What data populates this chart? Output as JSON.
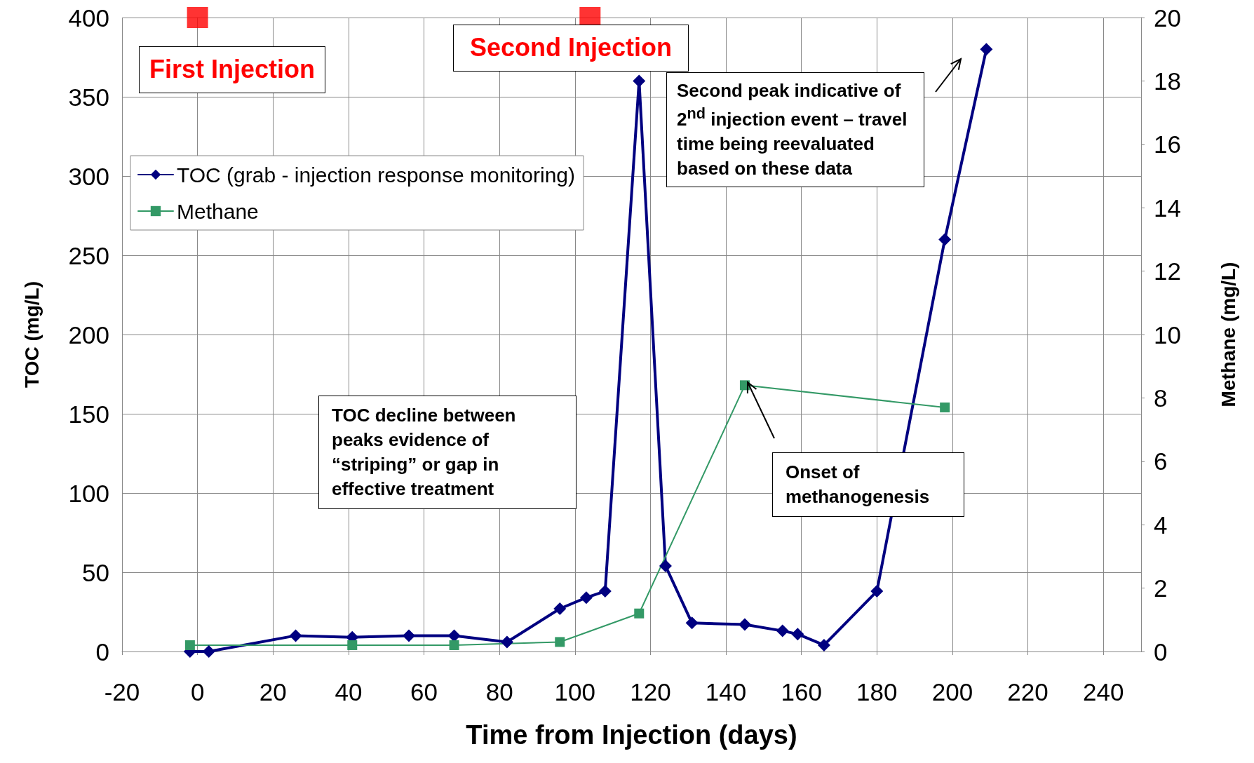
{
  "chart_data": {
    "type": "line",
    "xlabel": "Time from Injection (days)",
    "ylabel": "TOC (mg/L)",
    "y2label": "Methane (mg/L)",
    "xlim": [
      -20,
      250
    ],
    "xticks": [
      -20,
      0,
      20,
      40,
      60,
      80,
      100,
      120,
      140,
      160,
      180,
      200,
      220,
      240
    ],
    "ylim": [
      0,
      400
    ],
    "yticks": [
      0,
      50,
      100,
      150,
      200,
      250,
      300,
      350,
      400
    ],
    "y2lim": [
      0,
      20
    ],
    "y2ticks": [
      0,
      2,
      4,
      6,
      8,
      10,
      12,
      14,
      16,
      18,
      20
    ],
    "grid": true,
    "legend": "top left",
    "series": [
      {
        "name": "TOC (grab - injection response monitoring)",
        "color": "#000080",
        "marker": "diamond",
        "x": [
          -2,
          3,
          26,
          41,
          56,
          68,
          82,
          96,
          103,
          108,
          117,
          124,
          131,
          145,
          155,
          159,
          166,
          180,
          198,
          209
        ],
        "values": [
          0,
          0,
          10,
          9,
          10,
          10,
          6,
          27,
          34,
          38,
          360,
          54,
          18,
          17,
          13,
          11,
          4,
          38,
          260,
          380
        ]
      },
      {
        "name": "Methane",
        "color": "#339966",
        "marker": "square",
        "axis": "y2",
        "x": [
          -2,
          41,
          68,
          96,
          117,
          145,
          198
        ],
        "values": [
          0.2,
          0.2,
          0.2,
          0.3,
          1.2,
          8.4,
          7.7
        ]
      },
      {
        "type": "scatter",
        "color": "#ff0000",
        "marker": "square",
        "x": [
          0,
          104
        ],
        "values": [
          400,
          400
        ]
      }
    ],
    "annotations": [
      "First Injection",
      "Second Injection",
      "Second peak indicative of 2$^{nd}$ injection event – travel time being reevaluated based on these data",
      "TOC decline between peaks evidence of “striping” or gap in effective treatment",
      "Onset of methanogenesis"
    ]
  }
}
